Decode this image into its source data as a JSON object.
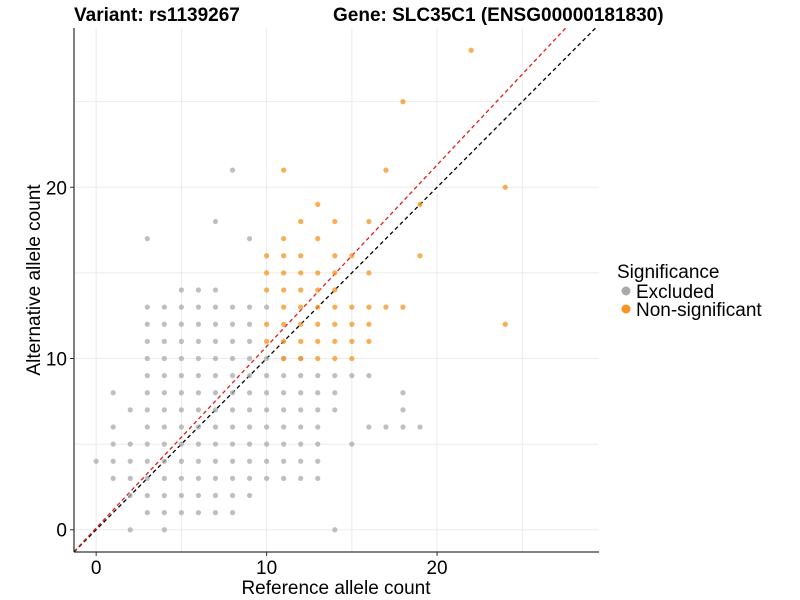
{
  "chart_data": {
    "type": "scatter",
    "title_variant": "Variant: rs1139267",
    "title_gene": "Gene: SLC35C1 (ENSG00000181830)",
    "xlabel": "Reference allele count",
    "ylabel": "Alternative allele count",
    "xlim": [
      -1.3,
      29.5
    ],
    "ylim": [
      -1.3,
      29.3
    ],
    "x_ticks": [
      0,
      10,
      20
    ],
    "y_ticks": [
      0,
      10,
      20
    ],
    "grid": true,
    "legend": {
      "title": "Significance",
      "position": "right",
      "entries": [
        {
          "label": "Excluded",
          "color": "#aaaaaa"
        },
        {
          "label": "Non-significant",
          "color": "#f7931e"
        }
      ]
    },
    "reference_lines": [
      {
        "name": "identity",
        "color": "#000000",
        "style": "dashed",
        "slope": 1.0,
        "intercept": 0
      },
      {
        "name": "fit",
        "color": "#e41a1c",
        "style": "dashed",
        "slope": 1.06,
        "intercept": 0.1
      }
    ],
    "series": [
      {
        "name": "Excluded",
        "color": "#aaaaaa",
        "points": [
          [
            0,
            4
          ],
          [
            1,
            8
          ],
          [
            1,
            6
          ],
          [
            1,
            5
          ],
          [
            1,
            4
          ],
          [
            1,
            3
          ],
          [
            2,
            7
          ],
          [
            2,
            5
          ],
          [
            2,
            4
          ],
          [
            2,
            3
          ],
          [
            2,
            2
          ],
          [
            2,
            0
          ],
          [
            3,
            17
          ],
          [
            3,
            13
          ],
          [
            3,
            12
          ],
          [
            3,
            11
          ],
          [
            3,
            10
          ],
          [
            3,
            9
          ],
          [
            3,
            8
          ],
          [
            3,
            7
          ],
          [
            3,
            6
          ],
          [
            3,
            5
          ],
          [
            3,
            4
          ],
          [
            3,
            3
          ],
          [
            3,
            2
          ],
          [
            3,
            1
          ],
          [
            4,
            13
          ],
          [
            4,
            12
          ],
          [
            4,
            11
          ],
          [
            4,
            10
          ],
          [
            4,
            9
          ],
          [
            4,
            8
          ],
          [
            4,
            7
          ],
          [
            4,
            6
          ],
          [
            4,
            5
          ],
          [
            4,
            4
          ],
          [
            4,
            3
          ],
          [
            4,
            2
          ],
          [
            4,
            1
          ],
          [
            4,
            0
          ],
          [
            5,
            14
          ],
          [
            5,
            13
          ],
          [
            5,
            12
          ],
          [
            5,
            11
          ],
          [
            5,
            10
          ],
          [
            5,
            9
          ],
          [
            5,
            8
          ],
          [
            5,
            7
          ],
          [
            5,
            6
          ],
          [
            5,
            5
          ],
          [
            5,
            4
          ],
          [
            5,
            3
          ],
          [
            5,
            2
          ],
          [
            5,
            1
          ],
          [
            6,
            14
          ],
          [
            6,
            13
          ],
          [
            6,
            12
          ],
          [
            6,
            11
          ],
          [
            6,
            10
          ],
          [
            6,
            9
          ],
          [
            6,
            8
          ],
          [
            6,
            7
          ],
          [
            6,
            6
          ],
          [
            6,
            5
          ],
          [
            6,
            4
          ],
          [
            6,
            3
          ],
          [
            6,
            2
          ],
          [
            6,
            1
          ],
          [
            7,
            18
          ],
          [
            7,
            14
          ],
          [
            7,
            13
          ],
          [
            7,
            12
          ],
          [
            7,
            11
          ],
          [
            7,
            10
          ],
          [
            7,
            9
          ],
          [
            7,
            8
          ],
          [
            7,
            7
          ],
          [
            7,
            6
          ],
          [
            7,
            5
          ],
          [
            7,
            4
          ],
          [
            7,
            3
          ],
          [
            7,
            2
          ],
          [
            7,
            1
          ],
          [
            8,
            21
          ],
          [
            8,
            13
          ],
          [
            8,
            12
          ],
          [
            8,
            11
          ],
          [
            8,
            10
          ],
          [
            8,
            9
          ],
          [
            8,
            8
          ],
          [
            8,
            7
          ],
          [
            8,
            6
          ],
          [
            8,
            5
          ],
          [
            8,
            4
          ],
          [
            8,
            3
          ],
          [
            8,
            2
          ],
          [
            8,
            1
          ],
          [
            9,
            17
          ],
          [
            9,
            13
          ],
          [
            9,
            12
          ],
          [
            9,
            11
          ],
          [
            9,
            10
          ],
          [
            9,
            9
          ],
          [
            9,
            8
          ],
          [
            9,
            7
          ],
          [
            9,
            6
          ],
          [
            9,
            5
          ],
          [
            9,
            4
          ],
          [
            9,
            3
          ],
          [
            9,
            2
          ],
          [
            10,
            13
          ],
          [
            10,
            10
          ],
          [
            10,
            9
          ],
          [
            10,
            8
          ],
          [
            10,
            7
          ],
          [
            10,
            6
          ],
          [
            10,
            5
          ],
          [
            10,
            4
          ],
          [
            10,
            3
          ],
          [
            11,
            10
          ],
          [
            11,
            9
          ],
          [
            11,
            8
          ],
          [
            11,
            7
          ],
          [
            11,
            6
          ],
          [
            11,
            5
          ],
          [
            11,
            4
          ],
          [
            11,
            3
          ],
          [
            12,
            10
          ],
          [
            12,
            9
          ],
          [
            12,
            8
          ],
          [
            12,
            7
          ],
          [
            12,
            6
          ],
          [
            12,
            5
          ],
          [
            12,
            4
          ],
          [
            12,
            3
          ],
          [
            13,
            9
          ],
          [
            13,
            8
          ],
          [
            13,
            7
          ],
          [
            13,
            6
          ],
          [
            13,
            5
          ],
          [
            13,
            4
          ],
          [
            13,
            3
          ],
          [
            14,
            9
          ],
          [
            14,
            8
          ],
          [
            14,
            7
          ],
          [
            14,
            0
          ],
          [
            15,
            9
          ],
          [
            15,
            5
          ],
          [
            16,
            9
          ],
          [
            16,
            6
          ],
          [
            17,
            6
          ],
          [
            18,
            8
          ],
          [
            18,
            7
          ],
          [
            18,
            6
          ],
          [
            19,
            6
          ]
        ]
      },
      {
        "name": "Non-significant",
        "color": "#f7931e",
        "points": [
          [
            10,
            16
          ],
          [
            10,
            15
          ],
          [
            10,
            14
          ],
          [
            10,
            12
          ],
          [
            10,
            11
          ],
          [
            11,
            21
          ],
          [
            11,
            17
          ],
          [
            11,
            16
          ],
          [
            11,
            15
          ],
          [
            11,
            14
          ],
          [
            11,
            13
          ],
          [
            11,
            12
          ],
          [
            11,
            11
          ],
          [
            11,
            10
          ],
          [
            12,
            18
          ],
          [
            12,
            16
          ],
          [
            12,
            15
          ],
          [
            12,
            14
          ],
          [
            12,
            13
          ],
          [
            12,
            12
          ],
          [
            12,
            11
          ],
          [
            12,
            10
          ],
          [
            13,
            19
          ],
          [
            13,
            17
          ],
          [
            13,
            15
          ],
          [
            13,
            14
          ],
          [
            13,
            13
          ],
          [
            13,
            12
          ],
          [
            13,
            11
          ],
          [
            13,
            10
          ],
          [
            14,
            18
          ],
          [
            14,
            16
          ],
          [
            14,
            15
          ],
          [
            14,
            14
          ],
          [
            14,
            13
          ],
          [
            14,
            12
          ],
          [
            14,
            11
          ],
          [
            14,
            10
          ],
          [
            15,
            16
          ],
          [
            15,
            13
          ],
          [
            15,
            12
          ],
          [
            15,
            11
          ],
          [
            15,
            10
          ],
          [
            16,
            18
          ],
          [
            16,
            15
          ],
          [
            16,
            13
          ],
          [
            16,
            12
          ],
          [
            16,
            11
          ],
          [
            17,
            21
          ],
          [
            17,
            13
          ],
          [
            18,
            25
          ],
          [
            18,
            13
          ],
          [
            19,
            19
          ],
          [
            19,
            16
          ],
          [
            22,
            28
          ],
          [
            24,
            20
          ],
          [
            24,
            12
          ]
        ]
      }
    ]
  }
}
